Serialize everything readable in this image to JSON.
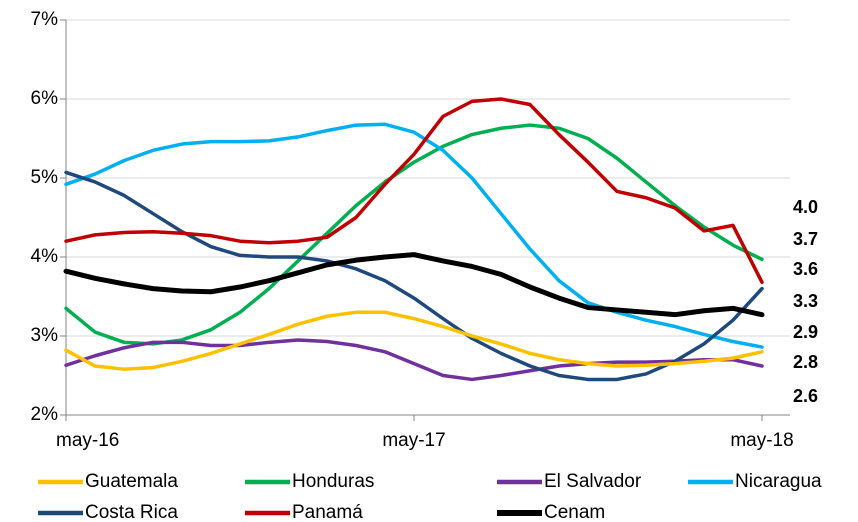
{
  "chart_data": {
    "type": "line",
    "categories": [
      "may-16",
      null,
      null,
      null,
      null,
      null,
      null,
      null,
      null,
      null,
      null,
      null,
      "may-17",
      null,
      null,
      null,
      null,
      null,
      null,
      null,
      null,
      null,
      null,
      null,
      "may-18"
    ],
    "ylim": [
      2,
      7
    ],
    "yticks": [
      {
        "value": 2,
        "label": "2%"
      },
      {
        "value": 3,
        "label": "3%"
      },
      {
        "value": 4,
        "label": "4%"
      },
      {
        "value": 5,
        "label": "5%"
      },
      {
        "value": 6,
        "label": "6%"
      },
      {
        "value": 7,
        "label": "7%"
      }
    ],
    "grid": true,
    "series": [
      {
        "name": "Guatemala",
        "color": "#ffc000",
        "values": [
          2.82,
          2.62,
          2.58,
          2.6,
          2.68,
          2.78,
          2.9,
          3.02,
          3.15,
          3.25,
          3.3,
          3.3,
          3.22,
          3.12,
          3.0,
          2.9,
          2.78,
          2.7,
          2.65,
          2.62,
          2.63,
          2.65,
          2.68,
          2.72,
          2.8
        ],
        "value_labels": [
          null,
          null,
          null,
          null,
          null,
          null,
          null,
          null,
          null,
          null,
          null,
          null,
          null,
          null,
          null,
          null,
          null,
          null,
          null,
          null,
          null,
          null,
          null,
          null,
          "2.8"
        ]
      },
      {
        "name": "Honduras",
        "color": "#00b050",
        "values": [
          3.35,
          3.05,
          2.92,
          2.9,
          2.95,
          3.08,
          3.3,
          3.6,
          3.95,
          4.3,
          4.65,
          4.95,
          5.2,
          5.4,
          5.55,
          5.63,
          5.67,
          5.63,
          5.5,
          5.25,
          4.95,
          4.65,
          4.38,
          4.15,
          3.97
        ],
        "value_labels": [
          null,
          null,
          null,
          null,
          null,
          null,
          null,
          null,
          null,
          null,
          null,
          null,
          null,
          null,
          null,
          null,
          null,
          null,
          null,
          null,
          null,
          null,
          null,
          null,
          "4.0"
        ]
      },
      {
        "name": "El Salvador",
        "color": "#7030a0",
        "values": [
          2.63,
          2.75,
          2.85,
          2.92,
          2.92,
          2.88,
          2.88,
          2.92,
          2.95,
          2.93,
          2.88,
          2.8,
          2.65,
          2.5,
          2.45,
          2.5,
          2.56,
          2.62,
          2.65,
          2.67,
          2.67,
          2.68,
          2.7,
          2.7,
          2.62
        ],
        "value_labels": [
          null,
          null,
          null,
          null,
          null,
          null,
          null,
          null,
          null,
          null,
          null,
          null,
          null,
          null,
          null,
          null,
          null,
          null,
          null,
          null,
          null,
          null,
          null,
          null,
          "2.6"
        ]
      },
      {
        "name": "Nicaragua",
        "color": "#00b0f0",
        "values": [
          4.92,
          5.05,
          5.22,
          5.35,
          5.43,
          5.46,
          5.46,
          5.47,
          5.52,
          5.6,
          5.67,
          5.68,
          5.58,
          5.35,
          5.0,
          4.55,
          4.1,
          3.7,
          3.42,
          3.3,
          3.2,
          3.12,
          3.02,
          2.93,
          2.86
        ],
        "value_labels": [
          null,
          null,
          null,
          null,
          null,
          null,
          null,
          null,
          null,
          null,
          null,
          null,
          null,
          null,
          null,
          null,
          null,
          null,
          null,
          null,
          null,
          null,
          null,
          null,
          "2.9"
        ]
      },
      {
        "name": "Costa Rica",
        "color": "#1f497d",
        "values": [
          5.07,
          4.95,
          4.78,
          4.55,
          4.32,
          4.13,
          4.02,
          4.0,
          4.0,
          3.95,
          3.85,
          3.7,
          3.48,
          3.22,
          2.97,
          2.78,
          2.62,
          2.5,
          2.45,
          2.45,
          2.52,
          2.68,
          2.9,
          3.2,
          3.6
        ],
        "value_labels": [
          null,
          null,
          null,
          null,
          null,
          null,
          null,
          null,
          null,
          null,
          null,
          null,
          null,
          null,
          null,
          null,
          null,
          null,
          null,
          null,
          null,
          null,
          null,
          null,
          "3.6"
        ]
      },
      {
        "name": "Panamá",
        "color": "#c00000",
        "values": [
          4.2,
          4.28,
          4.31,
          4.32,
          4.3,
          4.27,
          4.2,
          4.18,
          4.2,
          4.25,
          4.5,
          4.92,
          5.3,
          5.78,
          5.97,
          6.0,
          5.93,
          5.55,
          5.2,
          4.83,
          4.75,
          4.62,
          4.33,
          4.4,
          3.68
        ],
        "value_labels": [
          null,
          null,
          null,
          null,
          null,
          null,
          null,
          null,
          null,
          null,
          null,
          null,
          null,
          null,
          null,
          null,
          null,
          null,
          null,
          null,
          null,
          null,
          null,
          null,
          "3.7"
        ]
      },
      {
        "name": "Cenam",
        "color": "#000000",
        "values": [
          3.82,
          3.73,
          3.66,
          3.6,
          3.57,
          3.56,
          3.62,
          3.7,
          3.8,
          3.9,
          3.96,
          4.0,
          4.03,
          3.95,
          3.88,
          3.78,
          3.62,
          3.48,
          3.36,
          3.33,
          3.3,
          3.27,
          3.32,
          3.35,
          3.27
        ],
        "value_labels": [
          null,
          null,
          null,
          null,
          null,
          null,
          null,
          null,
          null,
          null,
          null,
          null,
          null,
          null,
          null,
          null,
          null,
          null,
          null,
          null,
          null,
          null,
          null,
          null,
          "3.3"
        ]
      }
    ]
  }
}
